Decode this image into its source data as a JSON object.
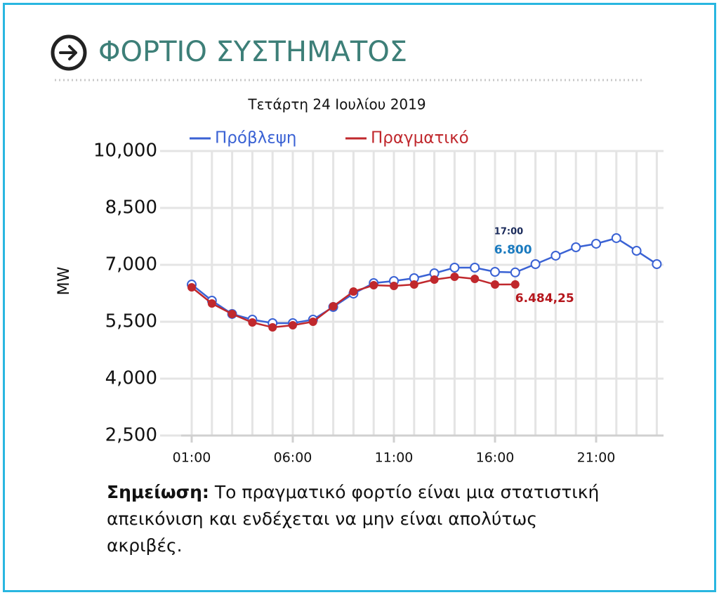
{
  "header": {
    "title": "ΦΟΡΤΙΟ ΣΥΣΤΗΜΑΤΟΣ"
  },
  "chart_data": {
    "type": "line",
    "subtitle": "Τετάρτη 24 Ιουλίου 2019",
    "y_label": "MW",
    "categories": [
      "01:00",
      null,
      null,
      null,
      null,
      "06:00",
      null,
      null,
      null,
      null,
      "11:00",
      null,
      null,
      null,
      null,
      "16:00",
      null,
      null,
      null,
      null,
      "21:00",
      null,
      null,
      null
    ],
    "series": [
      {
        "name": "Πρόβλεψη",
        "color": "#3a62d4",
        "values": [
          6481,
          6056,
          5704,
          5556,
          5463,
          5463,
          5556,
          5889,
          6241,
          6519,
          6574,
          6648,
          6778,
          6926,
          6926,
          6815,
          6800,
          7019,
          7241,
          7463,
          7556,
          7704,
          7370,
          7019
        ],
        "value_labels": [
          null,
          null,
          null,
          null,
          null,
          null,
          null,
          null,
          null,
          null,
          null,
          null,
          null,
          null,
          null,
          null,
          "6.800",
          null,
          null,
          null,
          null,
          null,
          null,
          null
        ]
      },
      {
        "name": "Πραγματικό",
        "color": "#c0282d",
        "values": [
          6407,
          5981,
          5704,
          5481,
          5352,
          5407,
          5500,
          5907,
          6296,
          6463,
          6444,
          6481,
          6611,
          6685,
          6630,
          6481,
          6484.25,
          null,
          null,
          null,
          null,
          null,
          null,
          null
        ],
        "value_labels": [
          null,
          null,
          null,
          null,
          null,
          null,
          null,
          null,
          null,
          null,
          null,
          null,
          null,
          null,
          null,
          null,
          "6.484,25",
          null,
          null,
          null,
          null,
          null,
          null,
          null
        ]
      }
    ],
    "tooltip_time": "17:00",
    "ylim": [
      2500,
      10000
    ],
    "yticks": [
      {
        "value": 2500,
        "label": "2,500"
      },
      {
        "value": 4000,
        "label": "4,000"
      },
      {
        "value": 5500,
        "label": "5,500"
      },
      {
        "value": 7000,
        "label": "7,000"
      },
      {
        "value": 8500,
        "label": "8,500"
      },
      {
        "value": 10000,
        "label": "10,000"
      }
    ],
    "grid": true,
    "legend": "top"
  },
  "note": {
    "label": "Σημείωση:",
    "text": "Το πραγματικό φορτίο είναι μια στατιστική απεικόνιση και ενδέχεται να μην είναι απολύτως ακριβές."
  }
}
